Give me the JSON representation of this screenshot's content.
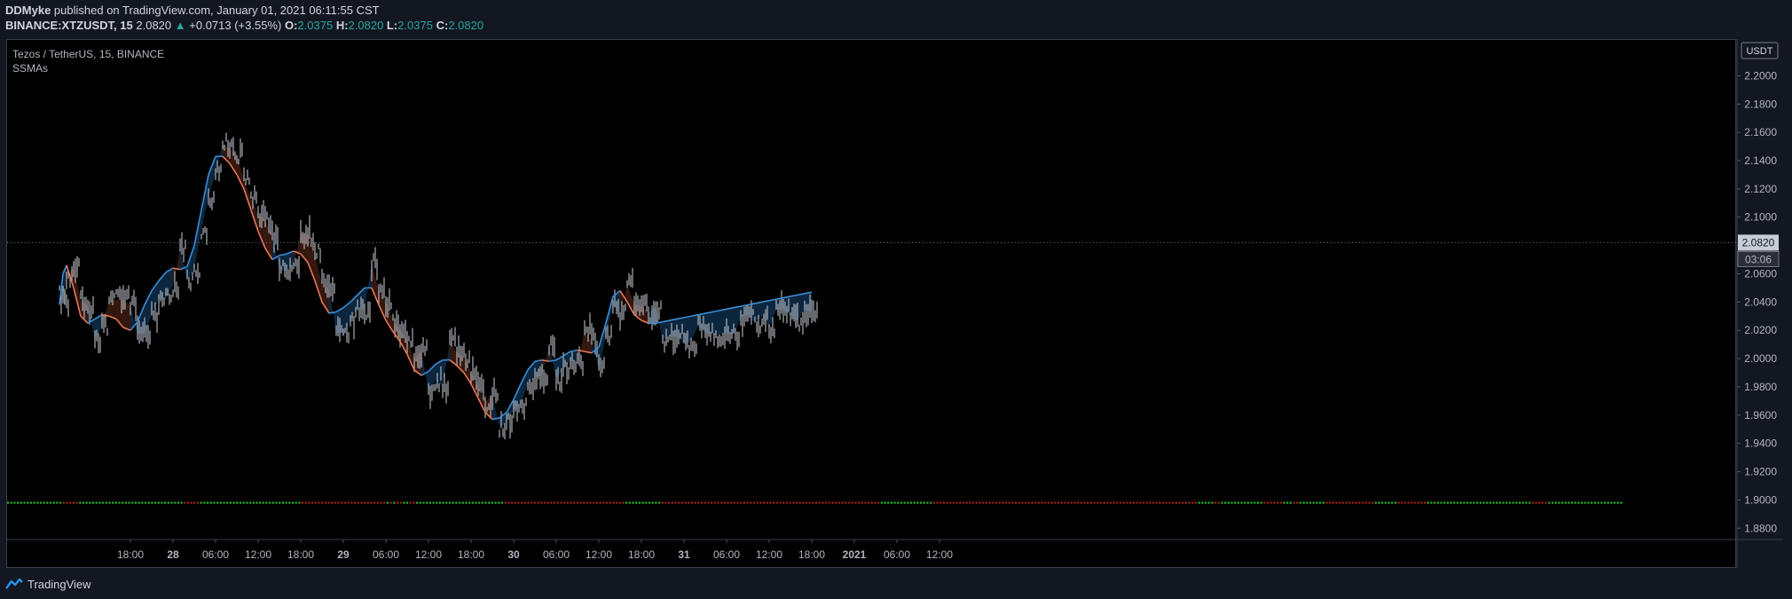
{
  "header": {
    "author": "DDMyke",
    "published": "published on TradingView.com, January 01, 2021 06:11:55 CST",
    "symbol": "BINANCE:XTZUSDT, 15",
    "last_price": "2.0820",
    "change_arrow": "▲",
    "change": "+0.0713 (+3.55%)",
    "o_label": "O:",
    "o_value": "2.0375",
    "h_label": "H:",
    "h_value": "2.0820",
    "l_label": "L:",
    "l_value": "2.0375",
    "c_label": "C:",
    "c_value": "2.0820"
  },
  "legend": {
    "title": "Tezos / TetherUS, 15, BINANCE",
    "indicator": "SSMAs"
  },
  "footer": {
    "brand": "TradingView",
    "logo_icon": "tradingview-logo-icon"
  },
  "colors": {
    "background": "#000000",
    "up_candle": "#c8ccd6",
    "ssma_up": "#3d8fd8",
    "ssma_down": "#e8785a",
    "fill_up": "#0d2a44",
    "fill_down": "#3a1a10",
    "dot_green": "#26c92d",
    "dot_red": "#b3241e",
    "price_line": "#777b85"
  },
  "chart_data": {
    "type": "line",
    "title": "Tezos / TetherUS, 15, BINANCE",
    "currency_label": "USDT",
    "ylim": [
      1.872,
      2.226
    ],
    "y_ticks": [
      "2.2000",
      "2.1800",
      "2.1600",
      "2.1400",
      "2.1200",
      "2.1000",
      "2.0800",
      "2.0600",
      "2.0400",
      "2.0200",
      "2.0000",
      "1.9800",
      "1.9600",
      "1.9400",
      "1.9200",
      "1.9000",
      "1.8800"
    ],
    "x_ticks": [
      "18:00",
      "28",
      "06:00",
      "12:00",
      "18:00",
      "29",
      "06:00",
      "12:00",
      "18:00",
      "30",
      "06:00",
      "12:00",
      "18:00",
      "31",
      "06:00",
      "12:00",
      "18:00",
      "2021",
      "06:00",
      "12:00"
    ],
    "last_price": "2.0820",
    "countdown": "03:06",
    "series": [
      {
        "name": "SSMAs",
        "x_hours": [
          -16,
          -15.5,
          -15,
          -14,
          -13,
          -12,
          -11,
          -10,
          -9,
          -8,
          -7,
          -6,
          -5,
          -4,
          -3,
          -2,
          -1,
          0,
          1,
          2,
          3,
          4,
          5,
          6,
          7,
          8,
          9,
          10,
          11,
          12,
          13,
          14,
          15,
          16,
          17,
          18,
          19,
          20,
          21,
          22,
          23,
          24,
          25,
          26,
          27,
          28,
          29,
          30,
          31,
          32,
          33,
          34,
          35,
          36,
          37,
          38,
          39,
          40,
          41,
          42,
          43,
          44,
          45,
          46,
          47,
          48,
          49,
          50,
          51,
          52,
          53,
          54,
          55,
          56,
          57,
          58,
          59,
          60,
          61,
          62,
          63,
          64,
          65,
          66,
          67,
          68,
          69,
          70,
          71,
          72,
          73,
          74,
          75,
          76,
          77,
          78,
          79,
          80,
          81,
          82,
          83,
          84,
          85,
          86,
          87,
          88,
          89,
          90
        ],
        "y": [
          2.038,
          2.06,
          2.066,
          2.05,
          2.03,
          2.025,
          2.028,
          2.031,
          2.03,
          2.028,
          2.022,
          2.02,
          2.026,
          2.038,
          2.048,
          2.055,
          2.061,
          2.064,
          2.063,
          2.065,
          2.08,
          2.105,
          2.13,
          2.143,
          2.143,
          2.138,
          2.13,
          2.12,
          2.105,
          2.09,
          2.078,
          2.07,
          2.073,
          2.074,
          2.076,
          2.074,
          2.068,
          2.055,
          2.04,
          2.032,
          2.033,
          2.036,
          2.04,
          2.045,
          2.05,
          2.05,
          2.038,
          2.027,
          2.019,
          2.012,
          2.003,
          1.992,
          1.988,
          1.991,
          1.996,
          1.999,
          1.999,
          1.995,
          1.99,
          1.982,
          1.972,
          1.962,
          1.957,
          1.958,
          1.962,
          1.971,
          1.982,
          1.992,
          1.998,
          1.999,
          1.998,
          1.999,
          2.002,
          2.005,
          2.006,
          2.005,
          2.004,
          2.008,
          2.025,
          2.044,
          2.048,
          2.04,
          2.031,
          2.027,
          2.025,
          2.025,
          2.026,
          2.027,
          2.028,
          2.029,
          2.03,
          2.031,
          2.032,
          2.033,
          2.034,
          2.035,
          2.036,
          2.037,
          2.038,
          2.039,
          2.04,
          2.041,
          2.042,
          2.043,
          2.044,
          2.045,
          2.046,
          2.047
        ],
        "visible_points": 92
      }
    ],
    "signal_dots": {
      "y_value": 1.898,
      "pattern": "GGGGGGGGGGGGGGGGGRRRRRGGGGGGGGGGGGGGGGGGGGGGGGGGGGGGGGRRRRRGGGGGGGGGGGGGGGGGGGGGGGGGGGGGGGRRRRRRRRRRRRRRRRRRRRRRRRRRGRGRRGGRRGGGGGGGGGGGGGGGGGGGGGGGGGGGRRRRRRRRRRRRRRRRRRRRRRRRRRRRRRRRRRRRRGGGGGGGGGGGRRRRRRRRRRRRRRRRRRRRRRRRRRRRRRRRRRRRRRRRRRRRRRRRRRRRRRRRRRRRRRRRRRRGGGGGGGGGGGGGGGGRRRRRRRRRRRRRRRRRRRRRRRRRRRRRRRRRRRRRRRRRRRRRRRRRRRRRRRRRRRRRRRRRRRRRRRRRRRRRRRRRGGGGGRRGGGGGGGGGGGGGRRRRRRGGGRRGGGGGGGGRRRRRRRRRRRRRRRGGGGGGGRRRRRRRRRGGGGGGGGGGGGGGGGGGGGGGGGGGGGGGGGRRRRRGGGGGGGGGGGGGGGGGGGGGGG"
    }
  }
}
